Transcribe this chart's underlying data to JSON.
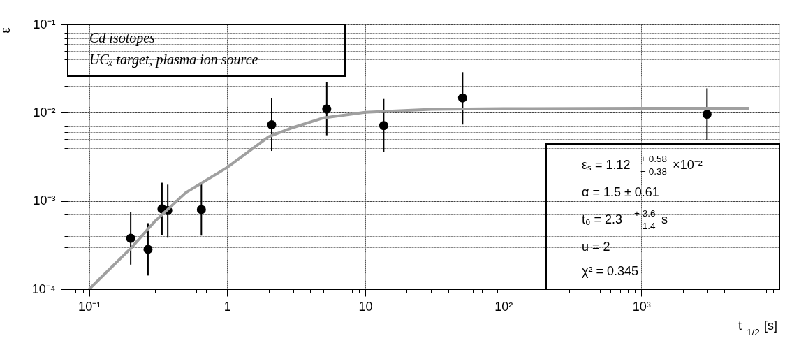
{
  "chart_data": {
    "type": "scatter",
    "xlabel": "t$_{1/2}$ [s]",
    "ylabel": "ε",
    "log": "xy",
    "grid": true,
    "xlim": [
      0.07,
      10000
    ],
    "ylim": [
      0.0001,
      0.1
    ],
    "xticks": [
      {
        "value": 0.07,
        "label": null
      },
      {
        "value": 0.08,
        "label": null
      },
      {
        "value": 0.09,
        "label": null
      },
      {
        "value": 0.1,
        "label": "10⁻¹"
      },
      {
        "value": 0.2,
        "label": null
      },
      {
        "value": 0.3,
        "label": null
      },
      {
        "value": 0.4,
        "label": null
      },
      {
        "value": 0.5,
        "label": null
      },
      {
        "value": 0.6,
        "label": null
      },
      {
        "value": 0.7,
        "label": null
      },
      {
        "value": 0.8,
        "label": null
      },
      {
        "value": 0.9,
        "label": null
      },
      1,
      {
        "value": 2,
        "label": null
      },
      {
        "value": 3,
        "label": null
      },
      {
        "value": 4,
        "label": null
      },
      {
        "value": 5,
        "label": null
      },
      {
        "value": 6,
        "label": null
      },
      {
        "value": 7,
        "label": null
      },
      {
        "value": 8,
        "label": null
      },
      {
        "value": 9,
        "label": null
      },
      10,
      {
        "value": 20,
        "label": null
      },
      {
        "value": 30,
        "label": null
      },
      {
        "value": 40,
        "label": null
      },
      {
        "value": 50,
        "label": null
      },
      {
        "value": 60,
        "label": null
      },
      {
        "value": 70,
        "label": null
      },
      {
        "value": 80,
        "label": null
      },
      {
        "value": 90,
        "label": null
      },
      {
        "value": 100,
        "label": "10²"
      },
      {
        "value": 200,
        "label": null
      },
      {
        "value": 300,
        "label": null
      },
      {
        "value": 400,
        "label": null
      },
      {
        "value": 500,
        "label": null
      },
      {
        "value": 600,
        "label": null
      },
      {
        "value": 700,
        "label": null
      },
      {
        "value": 800,
        "label": null
      },
      {
        "value": 900,
        "label": null
      },
      {
        "value": 1000,
        "label": "10³"
      },
      {
        "value": 2000,
        "label": null
      },
      {
        "value": 3000,
        "label": null
      },
      {
        "value": 4000,
        "label": null
      },
      {
        "value": 5000,
        "label": null
      },
      {
        "value": 6000,
        "label": null
      },
      {
        "value": 7000,
        "label": null
      },
      {
        "value": 8000,
        "label": null
      },
      {
        "value": 9000,
        "label": null
      }
    ],
    "yticks": [
      {
        "value": 0.0001,
        "label": "10⁻⁴"
      },
      {
        "value": 0.0002,
        "label": null
      },
      {
        "value": 0.0003,
        "label": null
      },
      {
        "value": 0.0004,
        "label": null
      },
      {
        "value": 0.0005,
        "label": null
      },
      {
        "value": 0.0006,
        "label": null
      },
      {
        "value": 0.0007,
        "label": null
      },
      {
        "value": 0.0008,
        "label": null
      },
      {
        "value": 0.0009,
        "label": null
      },
      {
        "value": 0.001,
        "label": "10⁻³"
      },
      {
        "value": 0.002,
        "label": null
      },
      {
        "value": 0.003,
        "label": null
      },
      {
        "value": 0.004,
        "label": null
      },
      {
        "value": 0.005,
        "label": null
      },
      {
        "value": 0.006,
        "label": null
      },
      {
        "value": 0.007,
        "label": null
      },
      {
        "value": 0.008,
        "label": null
      },
      {
        "value": 0.009,
        "label": null
      },
      {
        "value": 0.01,
        "label": "10⁻²"
      },
      {
        "value": 0.02,
        "label": null
      },
      {
        "value": 0.03,
        "label": null
      },
      {
        "value": 0.04,
        "label": null
      },
      {
        "value": 0.05,
        "label": null
      },
      {
        "value": 0.06,
        "label": null
      },
      {
        "value": 0.07,
        "label": null
      },
      {
        "value": 0.08,
        "label": null
      },
      {
        "value": 0.09,
        "label": null
      },
      {
        "value": 0.1,
        "label": "10⁻¹"
      }
    ],
    "annotations": [
      "Cd isotopes",
      "UCₓ target, plasma ion source",
      "εₛ = 1.12$^{+ 0.58}$$_{− 0.38}$ ×10⁻²",
      "α = 1.5 ± 0.61",
      "t₀ = 2.3$^{+ 3.6}$$_{− 1.4}$ s",
      "u = 2",
      "χ² = 0.345"
    ],
    "series": [
      {
        "marker": "circle",
        "color": "#000000",
        "x": [
          0.2,
          0.267,
          0.337,
          0.371,
          0.65,
          2.1,
          5.26,
          13.6,
          50.7,
          2990
        ],
        "values": [
          0.000378,
          0.000283,
          0.000815,
          0.00078,
          0.0008,
          0.0073,
          0.011,
          0.00716,
          0.0147,
          0.0096
        ],
        "errors": [
          [
            0.00019,
            0.00075
          ],
          [
            0.000143,
            0.00056
          ],
          [
            0.00041,
            0.00161
          ],
          [
            0.00039,
            0.00153
          ],
          [
            0.000405,
            0.00158
          ],
          [
            0.00369,
            0.0145
          ],
          [
            0.00555,
            0.0221
          ],
          [
            0.0036,
            0.0143
          ],
          [
            0.00735,
            0.0288
          ],
          [
            0.0049,
            0.0189
          ]
        ]
      },
      {
        "type": "line",
        "color": "#a0a0a0",
        "x": [
          0.1,
          0.2,
          0.3,
          0.5,
          1,
          2,
          3,
          5,
          10,
          30,
          100,
          1000,
          6000
        ],
        "values": [
          0.0001,
          0.00029,
          0.00059,
          0.00124,
          0.0024,
          0.00535,
          0.0068,
          0.00875,
          0.0101,
          0.0109,
          0.0111,
          0.0112,
          0.0112
        ]
      }
    ]
  }
}
